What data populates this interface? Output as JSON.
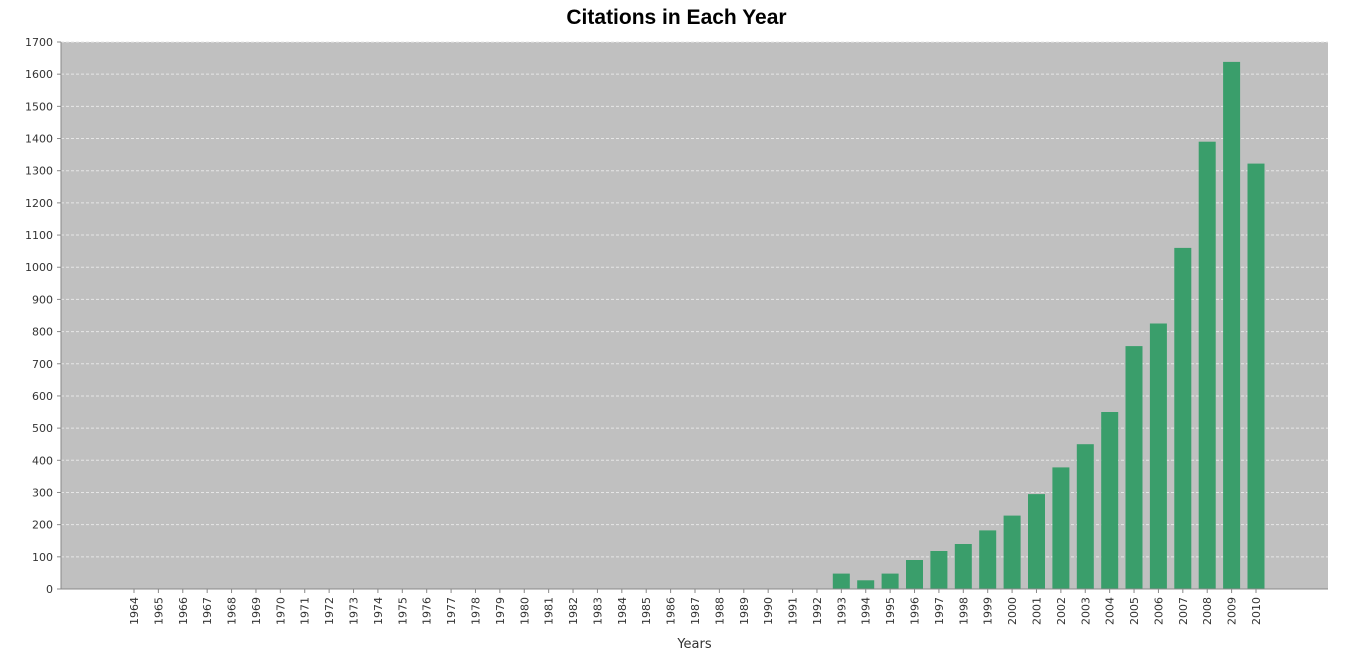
{
  "chart_data": {
    "type": "bar",
    "title": "Citations in Each Year",
    "xlabel": "Years",
    "ylabel": "",
    "ylim": [
      0,
      1700
    ],
    "yticks": [
      0,
      100,
      200,
      300,
      400,
      500,
      600,
      700,
      800,
      900,
      1000,
      1100,
      1200,
      1300,
      1400,
      1500,
      1600,
      1700
    ],
    "grid": true,
    "legend": "none",
    "colors": {
      "bar": "#3a9e6b",
      "plot_background": "#c0c0c0",
      "gridline": "#e6e6e6",
      "axis": "#888888"
    },
    "categories": [
      "1964",
      "1965",
      "1966",
      "1967",
      "1968",
      "1969",
      "1970",
      "1971",
      "1972",
      "1973",
      "1974",
      "1975",
      "1976",
      "1977",
      "1978",
      "1979",
      "1980",
      "1981",
      "1982",
      "1983",
      "1984",
      "1985",
      "1986",
      "1987",
      "1988",
      "1989",
      "1990",
      "1991",
      "1992",
      "1993",
      "1994",
      "1995",
      "1996",
      "1997",
      "1998",
      "1999",
      "2000",
      "2001",
      "2002",
      "2003",
      "2004",
      "2005",
      "2006",
      "2007",
      "2008",
      "2009",
      "2010"
    ],
    "values": [
      0,
      0,
      0,
      0,
      0,
      0,
      0,
      0,
      0,
      0,
      0,
      0,
      0,
      0,
      0,
      0,
      0,
      0,
      0,
      0,
      0,
      0,
      0,
      0,
      0,
      0,
      0,
      0,
      0,
      48,
      27,
      48,
      90,
      118,
      140,
      182,
      228,
      295,
      378,
      450,
      550,
      755,
      825,
      1060,
      1390,
      1638,
      1322
    ]
  }
}
